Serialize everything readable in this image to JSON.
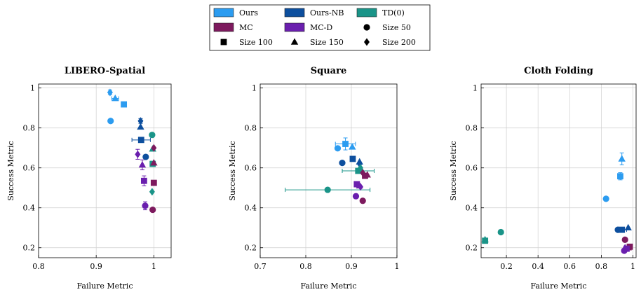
{
  "legend": {
    "entries": [
      {
        "label": "Ours",
        "kind": "series",
        "color": "#2c9cf0"
      },
      {
        "label": "Ours-NB",
        "kind": "series",
        "color": "#0d4f9e"
      },
      {
        "label": "TD(0)",
        "kind": "series",
        "color": "#1a9488"
      },
      {
        "label": "MC",
        "kind": "series",
        "color": "#7d1a5e"
      },
      {
        "label": "MC-D",
        "kind": "series",
        "color": "#6a1fae"
      },
      {
        "label": "Size 50",
        "kind": "marker",
        "marker": "circle"
      },
      {
        "label": "Size 100",
        "kind": "marker",
        "marker": "square"
      },
      {
        "label": "Size 150",
        "kind": "marker",
        "marker": "triangle"
      },
      {
        "label": "Size 200",
        "kind": "marker",
        "marker": "diamond"
      }
    ]
  },
  "chart_data": [
    {
      "type": "scatter",
      "title": "LIBERO-Spatial",
      "xlabel": "Failure Metric",
      "ylabel": "Success Metric",
      "xlim": [
        0.8,
        1.03
      ],
      "ylim": [
        0.15,
        1.02
      ],
      "xticks": [
        0.8,
        0.9,
        1
      ],
      "xtick_labels": [
        "0.8",
        "0.9",
        "1"
      ],
      "yticks": [
        0.2,
        0.4,
        0.6,
        0.8,
        1
      ],
      "ytick_labels": [
        "0.2",
        "0.4",
        "0.6",
        "0.8",
        "1"
      ],
      "grid": true,
      "points": [
        {
          "series": "Ours",
          "size": "Size 50",
          "x": 0.925,
          "y": 0.835
        },
        {
          "series": "Ours",
          "size": "Size 100",
          "x": 0.948,
          "y": 0.918
        },
        {
          "series": "Ours",
          "size": "Size 150",
          "x": 0.933,
          "y": 0.948,
          "xerr": 0.006
        },
        {
          "series": "Ours",
          "size": "Size 200",
          "x": 0.924,
          "y": 0.978,
          "yerr": 0.012
        },
        {
          "series": "Ours-NB",
          "size": "Size 50",
          "x": 0.986,
          "y": 0.655
        },
        {
          "series": "Ours-NB",
          "size": "Size 100",
          "x": 0.978,
          "y": 0.74,
          "xerr": 0.016
        },
        {
          "series": "Ours-NB",
          "size": "Size 150",
          "x": 0.977,
          "y": 0.805
        },
        {
          "series": "Ours-NB",
          "size": "Size 200",
          "x": 0.977,
          "y": 0.835,
          "yerr": 0.012
        },
        {
          "series": "TD(0)",
          "size": "Size 50",
          "x": 0.997,
          "y": 0.765
        },
        {
          "series": "TD(0)",
          "size": "Size 100",
          "x": 0.998,
          "y": 0.62
        },
        {
          "series": "TD(0)",
          "size": "Size 150",
          "x": 0.998,
          "y": 0.695
        },
        {
          "series": "TD(0)",
          "size": "Size 200",
          "x": 0.997,
          "y": 0.48
        },
        {
          "series": "MC",
          "size": "Size 50",
          "x": 0.998,
          "y": 0.39
        },
        {
          "series": "MC",
          "size": "Size 100",
          "x": 1.0,
          "y": 0.525
        },
        {
          "series": "MC",
          "size": "Size 150",
          "x": 1.0,
          "y": 0.625
        },
        {
          "series": "MC",
          "size": "Size 200",
          "x": 1.0,
          "y": 0.7
        },
        {
          "series": "MC-D",
          "size": "Size 50",
          "x": 0.985,
          "y": 0.41,
          "yerr": 0.02
        },
        {
          "series": "MC-D",
          "size": "Size 100",
          "x": 0.983,
          "y": 0.535,
          "yerr": 0.025
        },
        {
          "series": "MC-D",
          "size": "Size 150",
          "x": 0.98,
          "y": 0.615,
          "yerr": 0.025
        },
        {
          "series": "MC-D",
          "size": "Size 200",
          "x": 0.972,
          "y": 0.668,
          "yerr": 0.025
        }
      ]
    },
    {
      "type": "scatter",
      "title": "Square",
      "xlabel": "Failure Metric",
      "ylabel": "Success Metric",
      "xlim": [
        0.7,
        1.0
      ],
      "ylim": [
        0.15,
        1.02
      ],
      "xticks": [
        0.7,
        0.8,
        0.9,
        1
      ],
      "xtick_labels": [
        "0.7",
        "0.8",
        "0.9",
        "1"
      ],
      "yticks": [
        0.2,
        0.4,
        0.6,
        0.8,
        1
      ],
      "ytick_labels": [
        "0.2",
        "0.4",
        "0.6",
        "0.8",
        "1"
      ],
      "grid": true,
      "points": [
        {
          "series": "Ours",
          "size": "Size 50",
          "x": 0.87,
          "y": 0.698
        },
        {
          "series": "Ours",
          "size": "Size 100",
          "x": 0.887,
          "y": 0.72,
          "xerr": 0.022,
          "yerr": 0.03
        },
        {
          "series": "Ours",
          "size": "Size 150",
          "x": 0.902,
          "y": 0.705
        },
        {
          "series": "Ours-NB",
          "size": "Size 50",
          "x": 0.88,
          "y": 0.625
        },
        {
          "series": "Ours-NB",
          "size": "Size 100",
          "x": 0.903,
          "y": 0.645
        },
        {
          "series": "Ours-NB",
          "size": "Size 150",
          "x": 0.918,
          "y": 0.63
        },
        {
          "series": "Ours-NB",
          "size": "Size 200",
          "x": 0.918,
          "y": 0.62
        },
        {
          "series": "TD(0)",
          "size": "Size 50",
          "x": 0.848,
          "y": 0.49,
          "xerr": 0.093
        },
        {
          "series": "TD(0)",
          "size": "Size 100",
          "x": 0.915,
          "y": 0.585,
          "xerr": 0.035
        },
        {
          "series": "TD(0)",
          "size": "Size 150",
          "x": 0.922,
          "y": 0.59
        },
        {
          "series": "TD(0)",
          "size": "Size 200",
          "x": 0.92,
          "y": 0.6
        },
        {
          "series": "MC",
          "size": "Size 50",
          "x": 0.925,
          "y": 0.435
        },
        {
          "series": "MC",
          "size": "Size 100",
          "x": 0.93,
          "y": 0.56
        },
        {
          "series": "MC",
          "size": "Size 150",
          "x": 0.935,
          "y": 0.565
        },
        {
          "series": "MC",
          "size": "Size 200",
          "x": 0.925,
          "y": 0.575
        },
        {
          "series": "MC-D",
          "size": "Size 50",
          "x": 0.91,
          "y": 0.458
        },
        {
          "series": "MC-D",
          "size": "Size 100",
          "x": 0.912,
          "y": 0.518
        },
        {
          "series": "MC-D",
          "size": "Size 150",
          "x": 0.918,
          "y": 0.51
        },
        {
          "series": "MC-D",
          "size": "Size 200",
          "x": 0.92,
          "y": 0.505
        }
      ]
    },
    {
      "type": "scatter",
      "title": "Cloth Folding",
      "xlabel": "Failure Metric",
      "ylabel": "Success Metric",
      "xlim": [
        0.04,
        1.02
      ],
      "ylim": [
        0.15,
        1.02
      ],
      "xticks": [
        0.2,
        0.4,
        0.6,
        0.8,
        1
      ],
      "xtick_labels": [
        "0.2",
        "0.4",
        "0.6",
        "0.8",
        "1"
      ],
      "yticks": [
        0.2,
        0.4,
        0.6,
        0.8,
        1
      ],
      "ytick_labels": [
        "0.2",
        "0.4",
        "0.6",
        "0.8",
        "1"
      ],
      "grid": true,
      "points": [
        {
          "series": "Ours",
          "size": "Size 50",
          "x": 0.83,
          "y": 0.445
        },
        {
          "series": "Ours",
          "size": "Size 100",
          "x": 0.92,
          "y": 0.558,
          "yerr": 0.018
        },
        {
          "series": "Ours",
          "size": "Size 150",
          "x": 0.93,
          "y": 0.645,
          "yerr": 0.03
        },
        {
          "series": "Ours-NB",
          "size": "Size 50",
          "x": 0.905,
          "y": 0.29
        },
        {
          "series": "Ours-NB",
          "size": "Size 100",
          "x": 0.93,
          "y": 0.29,
          "xerr": 0.03
        },
        {
          "series": "Ours-NB",
          "size": "Size 150",
          "x": 0.97,
          "y": 0.3
        },
        {
          "series": "TD(0)",
          "size": "Size 50",
          "x": 0.165,
          "y": 0.278
        },
        {
          "series": "TD(0)",
          "size": "Size 100",
          "x": 0.065,
          "y": 0.235
        },
        {
          "series": "TD(0)",
          "size": "Size 150",
          "x": 0.065,
          "y": 0.24
        },
        {
          "series": "MC",
          "size": "Size 50",
          "x": 0.95,
          "y": 0.24
        },
        {
          "series": "MC",
          "size": "Size 100",
          "x": 0.98,
          "y": 0.205
        },
        {
          "series": "MC",
          "size": "Size 150",
          "x": 0.97,
          "y": 0.2
        },
        {
          "series": "MC-D",
          "size": "Size 50",
          "x": 0.945,
          "y": 0.185
        },
        {
          "series": "MC-D",
          "size": "Size 100",
          "x": 0.96,
          "y": 0.195
        },
        {
          "series": "MC-D",
          "size": "Size 150",
          "x": 0.95,
          "y": 0.2
        }
      ]
    }
  ]
}
